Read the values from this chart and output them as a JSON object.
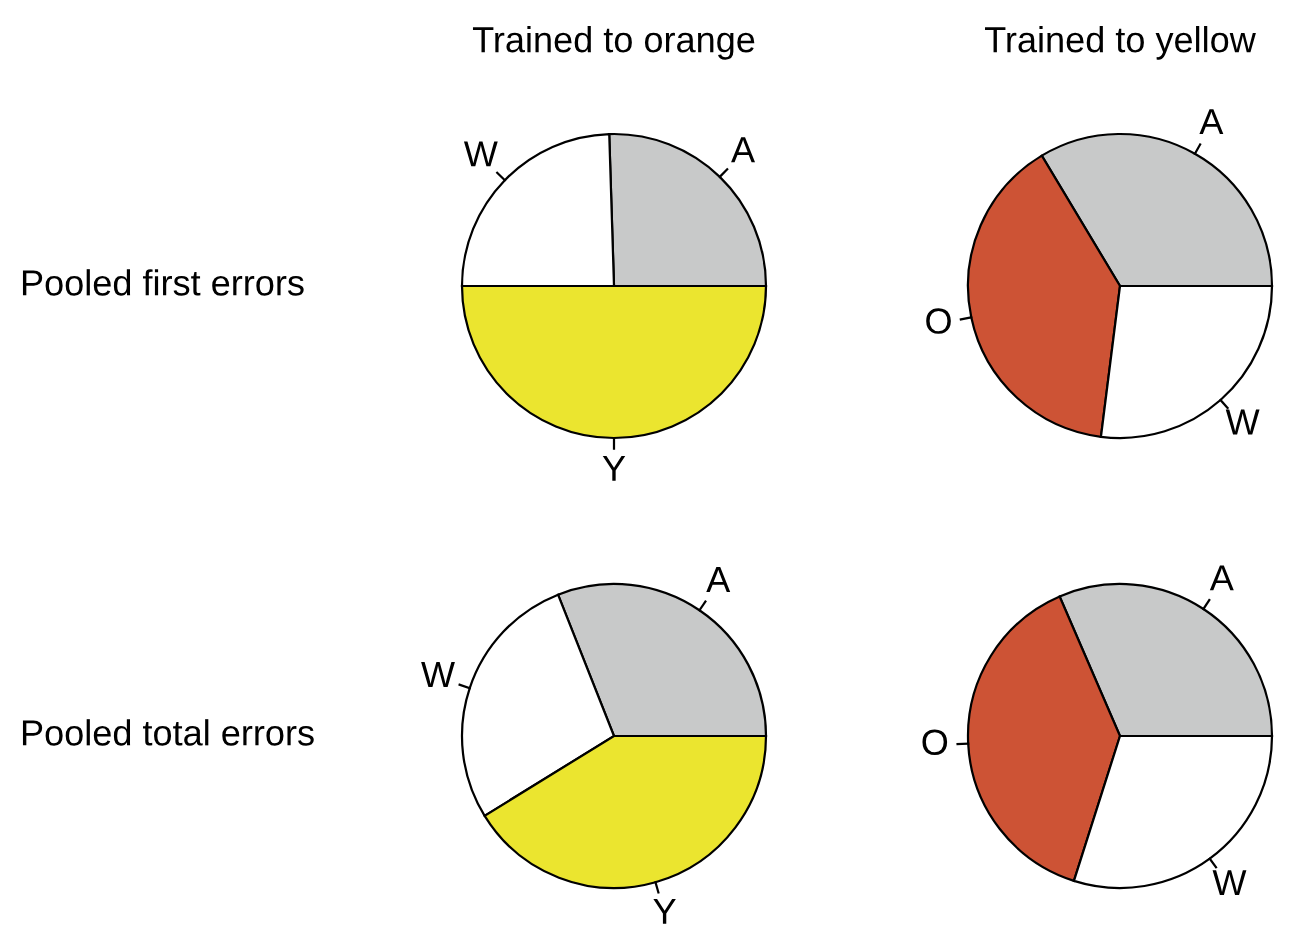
{
  "chart_data": [
    {
      "type": "pie",
      "title": "Trained to orange",
      "ylabel": "Pooled first errors",
      "categories": [
        "A",
        "W",
        "Y"
      ],
      "values": [
        25.5,
        24.5,
        50
      ],
      "colors": [
        "#c8c9c9",
        "#ffffff",
        "#ebe52f"
      ]
    },
    {
      "type": "pie",
      "title": "Trained to yellow",
      "categories": [
        "A",
        "O",
        "W"
      ],
      "values": [
        33.6,
        39.4,
        27
      ],
      "colors": [
        "#c8c9c9",
        "#cd5335",
        "#ffffff"
      ]
    },
    {
      "type": "pie",
      "ylabel": "Pooled total errors",
      "categories": [
        "A",
        "W",
        "Y"
      ],
      "values": [
        31,
        27.8,
        41.2
      ],
      "colors": [
        "#c8c9c9",
        "#ffffff",
        "#ebe52f"
      ]
    },
    {
      "type": "pie",
      "categories": [
        "A",
        "O",
        "W"
      ],
      "values": [
        31.5,
        38.6,
        29.9
      ],
      "colors": [
        "#c8c9c9",
        "#cd5335",
        "#ffffff"
      ]
    }
  ]
}
